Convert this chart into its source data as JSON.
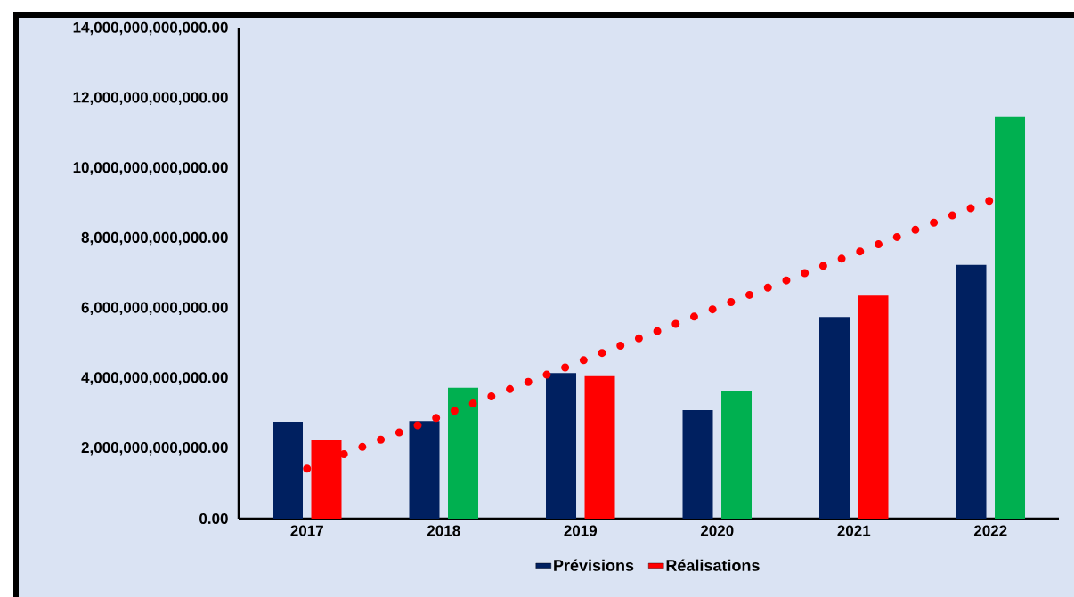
{
  "chart_data": {
    "type": "bar",
    "categories": [
      "2017",
      "2018",
      "2019",
      "2020",
      "2021",
      "2022"
    ],
    "series": [
      {
        "name": "Prévisions",
        "color": "#002060",
        "values": [
          2770000000000.0,
          2790000000000.0,
          4160000000000.0,
          3100000000000.0,
          5760000000000.0,
          7250000000000.0
        ]
      },
      {
        "name": "Réalisations",
        "color": "#ff0000",
        "colors": [
          "#ff0000",
          "#00b050",
          "#ff0000",
          "#00b050",
          "#ff0000",
          "#00b050"
        ],
        "values": [
          2250000000000.0,
          3740000000000.0,
          4070000000000.0,
          3630000000000.0,
          6370000000000.0,
          11490000000000.0
        ]
      },
      {
        "type": "line",
        "color": "#ff0000",
        "line_style": "dotted",
        "values": [
          1430000000000.0,
          2960000000000.0,
          4490000000000.0,
          6030000000000.0,
          7560000000000.0,
          9090000000000.0
        ]
      }
    ],
    "ylim": [
      0,
      14000000000000.0
    ],
    "yticks": [
      {
        "value": 0,
        "label": "0.00"
      },
      {
        "value": 2000000000000.0,
        "label": "2,000,000,000,000.00"
      },
      {
        "value": 4000000000000.0,
        "label": "4,000,000,000,000.00"
      },
      {
        "value": 6000000000000.0,
        "label": "6,000,000,000,000.00"
      },
      {
        "value": 8000000000000.0,
        "label": "8,000,000,000,000.00"
      },
      {
        "value": 10000000000000.0,
        "label": "10,000,000,000,000.00"
      },
      {
        "value": 12000000000000.0,
        "label": "12,000,000,000,000.00"
      },
      {
        "value": 14000000000000.0,
        "label": "14,000,000,000,000.00"
      }
    ],
    "grid": false,
    "legend": "bottom"
  }
}
